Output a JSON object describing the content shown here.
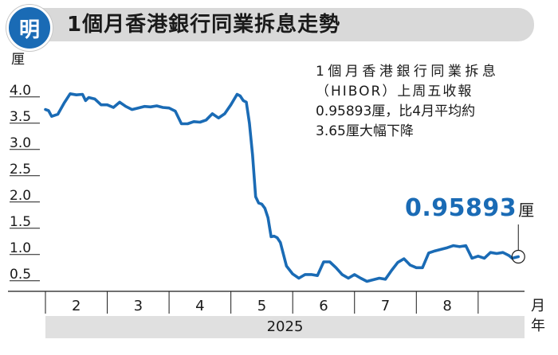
{
  "header": {
    "logo_char": "明",
    "title": "1個月香港銀行同業拆息走勢"
  },
  "note": {
    "line1": "1個月香港銀行同業拆息",
    "line2": "（HIBOR）上周五收報",
    "line3": "0.95893厘，比4月平均約",
    "line4": "3.65厘大幅下降"
  },
  "callout": {
    "value": "0.95893",
    "unit": "厘"
  },
  "colors": {
    "line": "#1a6bb5",
    "axis": "#1a1a1a",
    "gridline": "#1a1a1a",
    "band": "#e0e0e0"
  },
  "chart_data": {
    "type": "line",
    "title": "1個月香港銀行同業拆息走勢",
    "ylabel": "厘",
    "xlabel": "月",
    "year": "2025",
    "ylim": [
      0.3,
      4.3
    ],
    "yticks": [
      "0.5",
      "1.0",
      "1.5",
      "2.0",
      "2.5",
      "3.0",
      "3.5",
      "4.0"
    ],
    "months": [
      "2",
      "3",
      "4",
      "5",
      "6",
      "7",
      "8"
    ],
    "grid": "horizontal dashes only at left edge",
    "series": [
      {
        "values": [
          [
            1.5,
            3.76
          ],
          [
            1.55,
            3.74
          ],
          [
            1.6,
            3.63
          ],
          [
            1.7,
            3.67
          ],
          [
            1.8,
            3.88
          ],
          [
            1.9,
            4.06
          ],
          [
            2.0,
            4.04
          ],
          [
            2.1,
            4.05
          ],
          [
            2.15,
            3.93
          ],
          [
            2.2,
            3.99
          ],
          [
            2.3,
            3.96
          ],
          [
            2.4,
            3.85
          ],
          [
            2.5,
            3.85
          ],
          [
            2.6,
            3.8
          ],
          [
            2.7,
            3.9
          ],
          [
            2.8,
            3.82
          ],
          [
            2.9,
            3.76
          ],
          [
            3.0,
            3.79
          ],
          [
            3.1,
            3.82
          ],
          [
            3.2,
            3.81
          ],
          [
            3.3,
            3.83
          ],
          [
            3.4,
            3.8
          ],
          [
            3.5,
            3.79
          ],
          [
            3.6,
            3.73
          ],
          [
            3.7,
            3.49
          ],
          [
            3.8,
            3.49
          ],
          [
            3.9,
            3.53
          ],
          [
            4.0,
            3.52
          ],
          [
            4.1,
            3.56
          ],
          [
            4.2,
            3.68
          ],
          [
            4.3,
            3.6
          ],
          [
            4.4,
            3.68
          ],
          [
            4.5,
            3.85
          ],
          [
            4.6,
            4.05
          ],
          [
            4.65,
            4.02
          ],
          [
            4.7,
            3.93
          ],
          [
            4.75,
            3.9
          ],
          [
            4.8,
            3.5
          ],
          [
            4.85,
            2.9
          ],
          [
            4.9,
            2.1
          ],
          [
            4.95,
            1.98
          ],
          [
            5.0,
            1.96
          ],
          [
            5.05,
            1.88
          ],
          [
            5.1,
            1.7
          ],
          [
            5.15,
            1.34
          ],
          [
            5.2,
            1.35
          ],
          [
            5.25,
            1.32
          ],
          [
            5.3,
            1.23
          ],
          [
            5.4,
            0.78
          ],
          [
            5.5,
            0.63
          ],
          [
            5.6,
            0.55
          ],
          [
            5.7,
            0.62
          ],
          [
            5.8,
            0.62
          ],
          [
            5.9,
            0.6
          ],
          [
            6.0,
            0.86
          ],
          [
            6.1,
            0.86
          ],
          [
            6.2,
            0.75
          ],
          [
            6.3,
            0.62
          ],
          [
            6.4,
            0.55
          ],
          [
            6.5,
            0.62
          ],
          [
            6.6,
            0.55
          ],
          [
            6.7,
            0.49
          ],
          [
            6.8,
            0.52
          ],
          [
            6.9,
            0.55
          ],
          [
            7.0,
            0.53
          ],
          [
            7.1,
            0.7
          ],
          [
            7.2,
            0.85
          ],
          [
            7.3,
            0.92
          ],
          [
            7.4,
            0.8
          ],
          [
            7.5,
            0.75
          ],
          [
            7.6,
            0.75
          ],
          [
            7.7,
            1.03
          ],
          [
            7.8,
            1.07
          ],
          [
            7.9,
            1.1
          ],
          [
            8.0,
            1.13
          ],
          [
            8.1,
            1.17
          ],
          [
            8.2,
            1.15
          ],
          [
            8.3,
            1.17
          ],
          [
            8.4,
            0.93
          ],
          [
            8.5,
            0.97
          ],
          [
            8.6,
            0.93
          ],
          [
            8.7,
            1.04
          ],
          [
            8.8,
            1.02
          ],
          [
            8.9,
            1.04
          ],
          [
            9.0,
            0.98
          ],
          [
            9.05,
            0.93
          ],
          [
            9.15,
            0.95893
          ]
        ]
      }
    ]
  }
}
